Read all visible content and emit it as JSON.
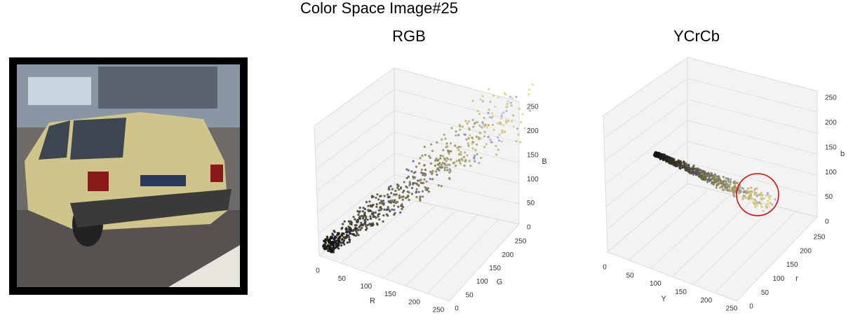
{
  "title": "Color Space Image#25",
  "panels": [
    {
      "title": "RGB",
      "z_ticks": [
        "0",
        "50",
        "100",
        "150",
        "200",
        "250"
      ],
      "z_label": "B",
      "x_ticks": [
        "0",
        "50",
        "100",
        "150",
        "200",
        "250"
      ],
      "x_label": "R",
      "y_ticks": [
        "0",
        "50",
        "100",
        "150",
        "200",
        "250"
      ],
      "y_label": "G"
    },
    {
      "title": "YCrCb",
      "z_ticks": [
        "0",
        "50",
        "100",
        "150",
        "200",
        "250"
      ],
      "z_label": "b",
      "x_ticks": [
        "0",
        "50",
        "100",
        "150",
        "200",
        "250"
      ],
      "x_label": "Y",
      "y_ticks": [
        "0",
        "50",
        "100",
        "150",
        "200",
        "250"
      ],
      "y_label": "r"
    }
  ]
}
